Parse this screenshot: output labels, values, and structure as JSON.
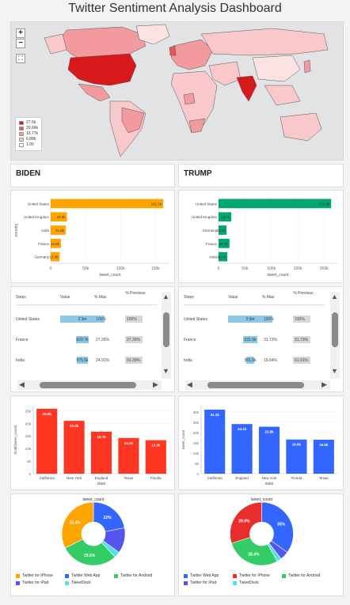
{
  "page_title": "Twitter Sentiment Analysis Dashboard",
  "map": {
    "zoom_in": "+",
    "zoom_out": "−",
    "fullscreen": "⛶",
    "legend": [
      {
        "label": "27.5k",
        "color": "#d7191c"
      },
      {
        "label": "20.66k",
        "color": "#e8565a"
      },
      {
        "label": "13.77k",
        "color": "#f39a9e"
      },
      {
        "label": "6.88k",
        "color": "#f9c8ca"
      },
      {
        "label": "1.00",
        "color": "#ffffff"
      }
    ]
  },
  "biden": {
    "header": "BIDEN",
    "country_chart": {
      "ylabel": "country",
      "xlabel": "tweet_count",
      "ticks": [
        "0",
        "50k",
        "100k",
        "150k"
      ],
      "bars": [
        {
          "label": "United States",
          "value_label": "161.1k"
        },
        {
          "label": "United Kingdom",
          "value_label": "23.3k"
        },
        {
          "label": "India",
          "value_label": "21.5k"
        },
        {
          "label": "France",
          "value_label": "14.6k"
        },
        {
          "label": "Germany",
          "value_label": "12.8k"
        }
      ]
    },
    "table": {
      "headers": [
        "Steps",
        "Value",
        "% Max",
        "% Previous"
      ],
      "rows": [
        {
          "step": "United States",
          "value": "2.3m",
          "pct_max": "100%",
          "pct_prev": "100%"
        },
        {
          "step": "France",
          "value": "629.7k",
          "pct_max": "27.26%",
          "pct_prev": "27.26%"
        },
        {
          "step": "India",
          "value": "575.5k",
          "pct_max": "24.91%",
          "pct_prev": "91.39%"
        }
      ]
    },
    "state_chart": {
      "ylabel": "SUM(tweet_count)",
      "xlabel": "state",
      "ticks": [
        "0",
        "5k",
        "10k",
        "15k",
        "20k",
        "25k"
      ],
      "bars": [
        {
          "label": "California",
          "value_label": "25.8k"
        },
        {
          "label": "New York",
          "value_label": "21.0k"
        },
        {
          "label": "England",
          "value_label": "16.7k"
        },
        {
          "label": "Texas",
          "value_label": "14.2k"
        },
        {
          "label": "Florida",
          "value_label": "13.3k"
        }
      ]
    },
    "pie": {
      "title": "tweet_count",
      "slices": [
        {
          "label": "22%"
        },
        {
          "label": ""
        },
        {
          "label": ""
        },
        {
          "label": "29.5%"
        },
        {
          "label": "32.4%"
        }
      ],
      "legend": [
        "Twitter for iPhone",
        "Twitter Web App",
        "Twitter for Android",
        "Twitter for iPad",
        "TweetDeck"
      ]
    }
  },
  "trump": {
    "header": "TRUMP",
    "country_chart": {
      "ylabel": "",
      "xlabel": "tweet_count",
      "ticks": [
        "0",
        "50k",
        "100k",
        "150k",
        "200k"
      ],
      "bars": [
        {
          "label": "United States",
          "value_label": "213.3k"
        },
        {
          "label": "United Kingdom",
          "value_label": "24.1k"
        },
        {
          "label": "Germany",
          "value_label": "15.1k"
        },
        {
          "label": "France",
          "value_label": "20.7k"
        },
        {
          "label": "India",
          "value_label": "16.6k"
        }
      ]
    },
    "table": {
      "headers": [
        "Steps",
        "Value",
        "% Max",
        "% Previous"
      ],
      "rows": [
        {
          "step": "United States",
          "value": "2.0m",
          "pct_max": "100%",
          "pct_prev": "100%"
        },
        {
          "step": "France",
          "value": "631.5k",
          "pct_max": "31.73%",
          "pct_prev": "31.73%"
        },
        {
          "step": "India",
          "value": "391.0k",
          "pct_max": "19.64%",
          "pct_prev": "61.91%"
        }
      ]
    },
    "state_chart": {
      "ylabel": "tweet_count",
      "xlabel": "state",
      "ticks": [
        "0",
        "5k",
        "10k",
        "15k",
        "20k",
        "25k",
        "30k"
      ],
      "bars": [
        {
          "label": "California",
          "value_label": "31.1k"
        },
        {
          "label": "England",
          "value_label": "24.1k"
        },
        {
          "label": "New York",
          "value_label": "22.8k"
        },
        {
          "label": "Florida",
          "value_label": "16.6k"
        },
        {
          "label": "Texas",
          "value_label": "16.5k"
        }
      ]
    },
    "pie": {
      "title": "tweet_count",
      "slices": [
        {
          "label": "35%"
        },
        {
          "label": ""
        },
        {
          "label": ""
        },
        {
          "label": "28.4%"
        },
        {
          "label": "29.8%"
        }
      ],
      "legend": [
        "Twitter Web App",
        "Twitter for iPhone",
        "Twitter for Android",
        "Twitter for iPad",
        "TweetDeck"
      ]
    }
  },
  "chart_data": [
    {
      "type": "bar",
      "orientation": "horizontal",
      "title": "",
      "xlabel": "tweet_count",
      "ylabel": "country",
      "categories": [
        "United States",
        "United Kingdom",
        "India",
        "France",
        "Germany"
      ],
      "values": [
        161100,
        23300,
        21500,
        14600,
        12800
      ],
      "xlim": [
        0,
        170000
      ],
      "color": "#ffa500"
    },
    {
      "type": "bar",
      "orientation": "horizontal",
      "title": "",
      "xlabel": "tweet_count",
      "ylabel": "",
      "categories": [
        "United States",
        "United Kingdom",
        "Germany",
        "France",
        "India"
      ],
      "values": [
        213300,
        24100,
        15100,
        20700,
        16600
      ],
      "xlim": [
        0,
        225000
      ],
      "color": "#00a870"
    },
    {
      "type": "table",
      "columns": [
        "Steps",
        "Value",
        "% Max",
        "% Previous"
      ],
      "rows": [
        [
          "United States",
          "2.3m",
          "100%",
          "100%"
        ],
        [
          "France",
          "629.7k",
          "27.26%",
          "27.26%"
        ],
        [
          "India",
          "575.5k",
          "24.91%",
          "91.39%"
        ]
      ],
      "value_fraction": [
        1.0,
        0.2726,
        0.2491
      ]
    },
    {
      "type": "table",
      "columns": [
        "Steps",
        "Value",
        "% Max",
        "% Previous"
      ],
      "rows": [
        [
          "United States",
          "2.0m",
          "100%",
          "100%"
        ],
        [
          "France",
          "631.5k",
          "31.73%",
          "31.73%"
        ],
        [
          "India",
          "391.0k",
          "19.64%",
          "61.91%"
        ]
      ],
      "value_fraction": [
        1.0,
        0.3173,
        0.1964
      ]
    },
    {
      "type": "bar",
      "title": "",
      "xlabel": "state",
      "ylabel": "SUM(tweet_count)",
      "categories": [
        "California",
        "New York",
        "England",
        "Texas",
        "Florida"
      ],
      "values": [
        25800,
        21000,
        16700,
        14200,
        13300
      ],
      "ylim": [
        0,
        27000
      ],
      "color": "#ff3622"
    },
    {
      "type": "bar",
      "title": "",
      "xlabel": "state",
      "ylabel": "tweet_count",
      "categories": [
        "California",
        "England",
        "New York",
        "Florida",
        "Texas"
      ],
      "values": [
        31100,
        24100,
        22800,
        16600,
        16500
      ],
      "ylim": [
        0,
        33000
      ],
      "color": "#3366ff"
    },
    {
      "type": "pie",
      "title": "tweet_count",
      "donut": true,
      "categories": [
        "Twitter for iPhone",
        "Twitter Web App",
        "Twitter for Android",
        "Twitter for iPad",
        "TweetDeck"
      ],
      "values": [
        32.4,
        22.0,
        29.5,
        13.0,
        3.1
      ],
      "colors": [
        "#ffa500",
        "#3366ff",
        "#33cc66",
        "#5555ee",
        "#55e0f0"
      ]
    },
    {
      "type": "pie",
      "title": "tweet_count",
      "donut": true,
      "categories": [
        "Twitter Web App",
        "Twitter for iPhone",
        "Twitter for Android",
        "Twitter for iPad",
        "TweetDeck"
      ],
      "values": [
        35.0,
        29.8,
        28.4,
        4.5,
        2.3
      ],
      "colors": [
        "#3366ff",
        "#e82d2d",
        "#33cc66",
        "#5555ee",
        "#55e0f0"
      ]
    }
  ]
}
